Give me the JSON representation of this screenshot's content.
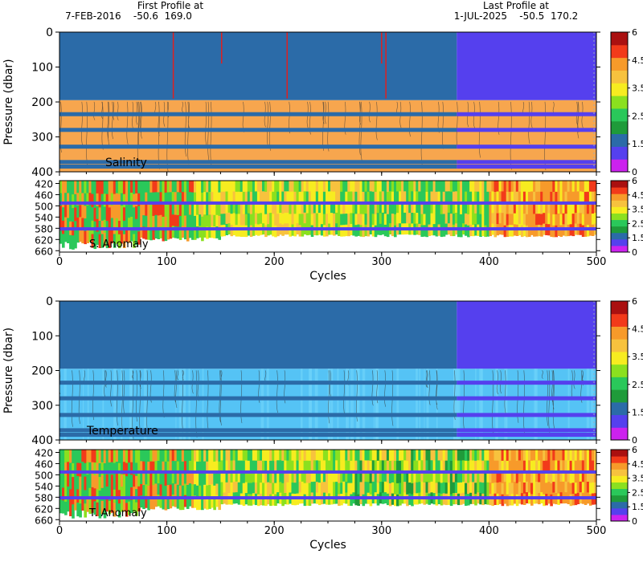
{
  "header": {
    "first_label": "First Profile at",
    "first_value": "7-FEB-2016    -50.6  169.0",
    "last_label": "Last Profile at",
    "last_value": "1-JUL-2025    -50.5  170.2"
  },
  "colors": {
    "surface_before": "#2b6ba8",
    "surface_after": "#5540ee",
    "salinity_band": "#f7a64e",
    "temperature_band": "#55c3f5",
    "stripe_before": "#2b6ba8",
    "stripe_after": "#5540ee"
  },
  "colorbar": {
    "colors": [
      "#cc22ee",
      "#5540ee",
      "#2b6ba8",
      "#1f9b3a",
      "#2ac85a",
      "#8be01f",
      "#f7ec20",
      "#f7c23e",
      "#f79a2a",
      "#f23a1a",
      "#aa1010"
    ],
    "tick_labels": [
      "0",
      "1.5",
      "2.5",
      "3.5",
      "4.5",
      "6"
    ]
  },
  "chart_data": [
    {
      "type": "heatmap",
      "name": "Salinity",
      "label": "Salinity",
      "ylabel": "Pressure (dbar)",
      "xlim": [
        0,
        500
      ],
      "ylim": [
        0,
        400
      ],
      "y_ticks": [
        0,
        100,
        200,
        300,
        400
      ],
      "x_ticks": [
        0,
        100,
        200,
        300,
        400,
        500
      ],
      "float_change_cycle": 370,
      "surface_layer_depth": 195,
      "stripe_depths": [
        235,
        280,
        328,
        372,
        385
      ],
      "red_spike_cycles": [
        106,
        151,
        212,
        300,
        304
      ]
    },
    {
      "type": "heatmap",
      "name": "S. Anomaly",
      "label": "S. Anomaly",
      "xlabel": "Cycles",
      "xlim": [
        0,
        500
      ],
      "ylim": [
        410,
        665
      ],
      "y_ticks": [
        420,
        460,
        500,
        540,
        580,
        620,
        660
      ],
      "x_ticks": [
        0,
        100,
        200,
        300,
        400,
        500
      ],
      "stripe_depths": [
        490,
        582
      ]
    },
    {
      "type": "heatmap",
      "name": "Temperature",
      "label": "Temperature",
      "ylabel": "Pressure (dbar)",
      "xlim": [
        0,
        500
      ],
      "ylim": [
        0,
        400
      ],
      "y_ticks": [
        0,
        100,
        200,
        300,
        400
      ],
      "x_ticks": [
        0,
        100,
        200,
        300,
        400,
        500
      ],
      "float_change_cycle": 370,
      "surface_layer_depth": 195,
      "stripe_depths": [
        235,
        280,
        328,
        372,
        385
      ]
    },
    {
      "type": "heatmap",
      "name": "T. Anomaly",
      "label": "T. Anomaly",
      "xlabel": "Cycles",
      "xlim": [
        0,
        500
      ],
      "ylim": [
        410,
        665
      ],
      "y_ticks": [
        420,
        460,
        500,
        540,
        580,
        620,
        660
      ],
      "x_ticks": [
        0,
        100,
        200,
        300,
        400,
        500
      ],
      "stripe_depths": [
        490,
        582
      ]
    }
  ]
}
